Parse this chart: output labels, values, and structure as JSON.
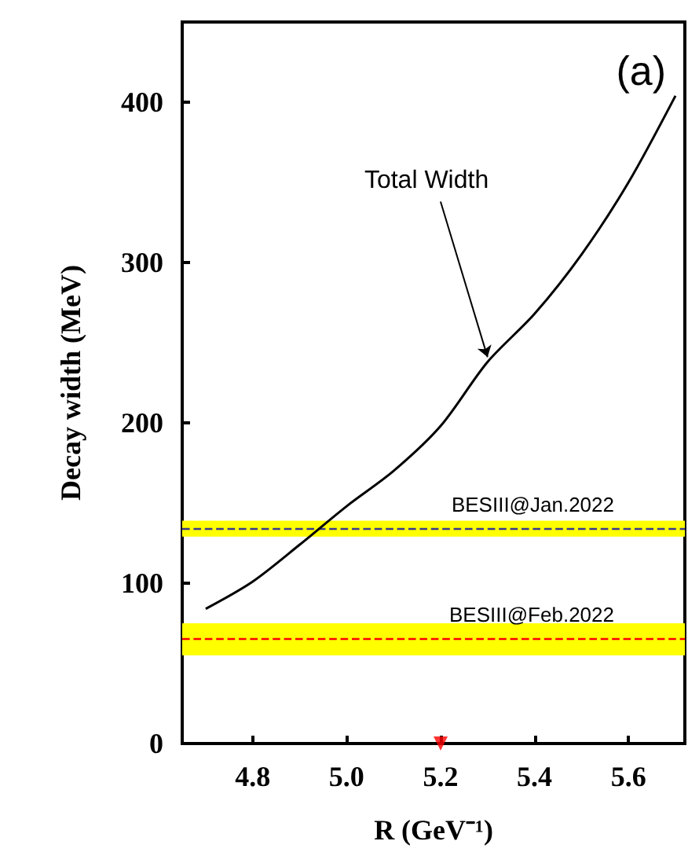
{
  "chart_data": {
    "type": "line",
    "xlabel": "R (GeV⁻¹)",
    "ylabel": "Decay width (MeV)",
    "x": [
      4.7,
      4.8,
      4.9,
      5.0,
      5.1,
      5.2,
      5.3,
      5.4,
      5.5,
      5.6,
      5.7
    ],
    "series": [
      {
        "color": "#000000",
        "values": [
          84,
          101,
          124,
          148,
          170,
          198,
          238,
          268,
          305,
          350,
          404
        ]
      },
      {
        "type": "scatter",
        "x": [
          5.2
        ],
        "values": [
          0
        ],
        "color": "#ff0000",
        "marker": "triangle"
      }
    ],
    "xlim": [
      4.65,
      5.72
    ],
    "xticks": [
      4.8,
      {
        "value": 5.0,
        "label": "5.0"
      },
      5.2,
      5.4,
      5.6
    ],
    "ylim": [
      0,
      450
    ],
    "yticks": [
      0,
      100,
      200,
      300,
      400
    ],
    "bands": [
      {
        "axis": "y",
        "from": 129,
        "to": 139,
        "color": "#ffff00"
      },
      {
        "axis": "y",
        "from": 55,
        "to": 75,
        "color": "#ffff00"
      }
    ],
    "ref_lines": [
      {
        "axis": "y",
        "value": 134,
        "label": "BESIII@Jan.2022",
        "color": "#3a3a8c",
        "line_style": "dashed"
      },
      {
        "axis": "y",
        "value": 65,
        "label": "BESIII@Feb.2022",
        "color": "#ff0000",
        "line_style": "dashed"
      }
    ],
    "annotations": [
      "(a)",
      {
        "text": "Total Width",
        "x": 5.3,
        "y": 241
      }
    ],
    "grid": false,
    "marker": "none",
    "line_style": "solid"
  }
}
